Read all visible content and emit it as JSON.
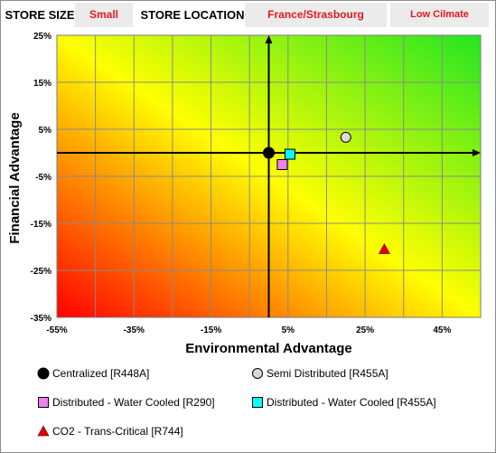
{
  "header": {
    "store_size_label": "STORE SIZE",
    "store_size_value": "Small",
    "store_location_label": "STORE LOCATION",
    "store_location_value": "France/Strasbourg",
    "climate_value": "Low Cilmate"
  },
  "colors": {
    "accent_red": "#e8171f",
    "header_box_bg": "#ebebeb",
    "gradient_low": "#ff0000",
    "gradient_mid": "#ffff00",
    "gradient_high": "#22e622"
  },
  "chart_data": {
    "type": "scatter",
    "xlabel": "Environmental Advantage",
    "ylabel": "Financial Advantage",
    "xlim": [
      -55,
      55
    ],
    "ylim": [
      -35,
      25
    ],
    "x_ticks": [
      -55,
      -35,
      -15,
      5,
      25,
      45
    ],
    "x_tick_labels": [
      "-55%",
      "-35%",
      "-15%",
      "5%",
      "25%",
      "45%"
    ],
    "y_ticks": [
      25,
      15,
      5,
      -5,
      -15,
      -25,
      -35
    ],
    "y_tick_labels": [
      "25%",
      "15%",
      "5%",
      "-5%",
      "-15%",
      "-25%",
      "-35%"
    ],
    "grid": true,
    "background": "diagonal gradient red (bottom-left) to yellow to green (top-right)",
    "legend_position": "bottom",
    "series": [
      {
        "name": "Centralized [R448A]",
        "marker": "circle",
        "color": "#000000",
        "x": 0,
        "y": 0
      },
      {
        "name": "Semi Distributed [R455A]",
        "marker": "circle",
        "color": "#d9d9d9",
        "x": 20,
        "y": 3.3
      },
      {
        "name": "Distributed - Water Cooled [R290]",
        "marker": "square",
        "color": "#ee82ee",
        "x": 3.5,
        "y": -2.5
      },
      {
        "name": "Distributed - Water Cooled [R455A]",
        "marker": "square",
        "color": "#00ffff",
        "x": 5.5,
        "y": -0.3
      },
      {
        "name": "CO2 - Trans-Critical [R744]",
        "marker": "triangle",
        "color": "#e00000",
        "x": 30,
        "y": -20.5
      }
    ]
  }
}
